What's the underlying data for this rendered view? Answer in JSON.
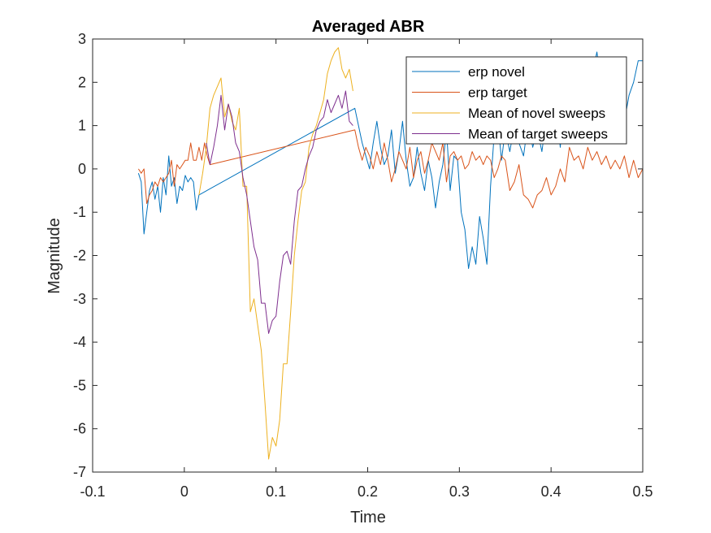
{
  "chart_data": {
    "type": "line",
    "title": "Averaged ABR",
    "xlabel": "Time",
    "ylabel": "Magnitude",
    "xlim": [
      -0.1,
      0.5
    ],
    "ylim": [
      -7,
      3
    ],
    "xticks": [
      -0.1,
      0,
      0.1,
      0.2,
      0.3,
      0.4,
      0.5
    ],
    "xtick_labels": [
      "-0.1",
      "0",
      "0.1",
      "0.2",
      "0.3",
      "0.4",
      "0.5"
    ],
    "yticks": [
      3,
      2,
      1,
      0,
      -1,
      -2,
      -3,
      -4,
      -5,
      -6,
      -7
    ],
    "ytick_labels": [
      "3",
      "2",
      "1",
      "0",
      "-1",
      "-2",
      "-3",
      "-4",
      "-5",
      "-6",
      "-7"
    ],
    "grid": false,
    "legend_position": "top-right",
    "series": [
      {
        "name": "erp novel",
        "color": "#0072BD",
        "x": [
          -0.05,
          -0.047,
          -0.044,
          -0.041,
          -0.038,
          -0.035,
          -0.032,
          -0.029,
          -0.026,
          -0.023,
          -0.02,
          -0.017,
          -0.014,
          -0.011,
          -0.008,
          -0.005,
          -0.002,
          0.001,
          0.004,
          0.007,
          0.01,
          0.013,
          0.016,
          0.186,
          0.19,
          0.194,
          0.198,
          0.202,
          0.206,
          0.21,
          0.214,
          0.218,
          0.222,
          0.226,
          0.23,
          0.234,
          0.238,
          0.242,
          0.246,
          0.25,
          0.254,
          0.258,
          0.262,
          0.266,
          0.27,
          0.274,
          0.278,
          0.282,
          0.286,
          0.29,
          0.294,
          0.298,
          0.302,
          0.306,
          0.31,
          0.314,
          0.318,
          0.322,
          0.326,
          0.33,
          0.334,
          0.338,
          0.342,
          0.346,
          0.35,
          0.355,
          0.36,
          0.365,
          0.37,
          0.375,
          0.38,
          0.385,
          0.39,
          0.395,
          0.4,
          0.405,
          0.41,
          0.415,
          0.42,
          0.425,
          0.43,
          0.435,
          0.44,
          0.445,
          0.45,
          0.455,
          0.46,
          0.465,
          0.47,
          0.475,
          0.48,
          0.485,
          0.49,
          0.495,
          0.5
        ],
        "y": [
          -0.1,
          -0.3,
          -1.5,
          -1.0,
          -0.5,
          -0.3,
          -0.7,
          -0.4,
          -1.0,
          -0.2,
          -0.6,
          0.3,
          -0.4,
          -0.2,
          -0.8,
          -0.4,
          -0.5,
          -0.15,
          -0.3,
          -0.2,
          -0.3,
          -0.95,
          -0.6,
          1.4,
          1.0,
          0.6,
          0.3,
          0.0,
          0.6,
          1.1,
          0.5,
          0.1,
          0.3,
          0.9,
          -0.1,
          0.4,
          1.1,
          0.2,
          -0.4,
          -0.2,
          0.5,
          -0.1,
          -0.5,
          0.2,
          -0.2,
          -0.9,
          -0.3,
          0.1,
          0.9,
          -0.5,
          0.3,
          0.2,
          -1.0,
          -1.4,
          -2.3,
          -1.8,
          -2.2,
          -1.1,
          -1.6,
          -2.2,
          -0.4,
          0.8,
          1.1,
          0.2,
          0.9,
          0.4,
          1.0,
          0.6,
          0.3,
          1.1,
          0.5,
          0.9,
          0.4,
          1.2,
          0.8,
          1.6,
          0.5,
          1.8,
          1.0,
          1.4,
          2.0,
          1.1,
          1.5,
          2.2,
          2.7,
          1.9,
          2.5,
          2.1,
          2.2,
          2.1,
          1.1,
          1.7,
          2.0,
          2.5,
          2.5
        ]
      },
      {
        "name": "erp target",
        "color": "#D95319",
        "x": [
          -0.05,
          -0.047,
          -0.044,
          -0.041,
          -0.038,
          -0.035,
          -0.032,
          -0.029,
          -0.026,
          -0.023,
          -0.02,
          -0.017,
          -0.014,
          -0.011,
          -0.008,
          -0.005,
          -0.002,
          0.001,
          0.004,
          0.007,
          0.01,
          0.013,
          0.016,
          0.019,
          0.022,
          0.025,
          0.028,
          0.186,
          0.19,
          0.194,
          0.198,
          0.202,
          0.206,
          0.21,
          0.214,
          0.218,
          0.222,
          0.226,
          0.23,
          0.234,
          0.238,
          0.242,
          0.246,
          0.25,
          0.254,
          0.258,
          0.262,
          0.266,
          0.27,
          0.274,
          0.278,
          0.282,
          0.286,
          0.29,
          0.294,
          0.298,
          0.302,
          0.306,
          0.31,
          0.314,
          0.318,
          0.322,
          0.326,
          0.33,
          0.334,
          0.338,
          0.342,
          0.346,
          0.35,
          0.355,
          0.36,
          0.365,
          0.37,
          0.375,
          0.38,
          0.385,
          0.39,
          0.395,
          0.4,
          0.405,
          0.41,
          0.415,
          0.42,
          0.425,
          0.43,
          0.435,
          0.44,
          0.445,
          0.45,
          0.455,
          0.46,
          0.465,
          0.47,
          0.475,
          0.48,
          0.485,
          0.49,
          0.495,
          0.5
        ],
        "y": [
          0.0,
          -0.1,
          0.0,
          -0.8,
          -0.6,
          -0.5,
          -0.3,
          -0.4,
          -0.2,
          -0.3,
          -0.2,
          -0.1,
          0.2,
          -0.4,
          0.1,
          0.0,
          0.1,
          0.2,
          0.2,
          0.6,
          0.2,
          0.2,
          0.5,
          0.2,
          0.6,
          0.3,
          0.1,
          0.9,
          0.5,
          0.2,
          0.5,
          0.3,
          0.0,
          0.4,
          0.1,
          0.6,
          0.2,
          -0.3,
          0.0,
          0.4,
          0.2,
          0.0,
          0.5,
          -0.2,
          0.2,
          0.4,
          -0.1,
          0.2,
          0.6,
          0.4,
          0.2,
          0.6,
          -0.3,
          0.3,
          0.4,
          0.2,
          0.3,
          0.0,
          0.1,
          0.4,
          0.2,
          0.3,
          0.1,
          0.3,
          0.2,
          -0.2,
          0.0,
          0.3,
          0.2,
          -0.5,
          -0.3,
          0.1,
          -0.6,
          -0.7,
          -0.9,
          -0.6,
          -0.5,
          -0.2,
          -0.6,
          -0.4,
          0.0,
          -0.3,
          0.5,
          0.2,
          0.3,
          0.0,
          0.5,
          0.2,
          0.4,
          0.1,
          0.3,
          0.0,
          0.2,
          0.0,
          0.3,
          -0.2,
          0.2,
          -0.2,
          0.0
        ]
      },
      {
        "name": "Mean of novel sweeps",
        "color": "#EDB120",
        "x": [
          0.016,
          0.02,
          0.024,
          0.028,
          0.032,
          0.036,
          0.04,
          0.044,
          0.048,
          0.052,
          0.056,
          0.06,
          0.064,
          0.068,
          0.072,
          0.076,
          0.08,
          0.084,
          0.088,
          0.092,
          0.096,
          0.1,
          0.104,
          0.108,
          0.112,
          0.116,
          0.12,
          0.124,
          0.128,
          0.132,
          0.136,
          0.14,
          0.144,
          0.148,
          0.152,
          0.156,
          0.16,
          0.164,
          0.168,
          0.172,
          0.176,
          0.18,
          0.184
        ],
        "y": [
          -0.6,
          -0.1,
          0.5,
          1.4,
          1.7,
          1.9,
          2.1,
          1.2,
          1.5,
          1.1,
          0.9,
          1.4,
          -0.4,
          -0.4,
          -3.3,
          -3.0,
          -3.6,
          -4.2,
          -5.4,
          -6.7,
          -6.2,
          -6.4,
          -5.8,
          -4.5,
          -4.5,
          -3.3,
          -2.0,
          -1.2,
          -0.5,
          -0.3,
          0.5,
          0.8,
          1.0,
          1.3,
          1.6,
          2.2,
          2.5,
          2.7,
          2.8,
          2.3,
          2.1,
          2.3,
          1.8
        ]
      },
      {
        "name": "Mean of target sweeps",
        "color": "#7E2F8E",
        "x": [
          0.024,
          0.028,
          0.032,
          0.036,
          0.04,
          0.044,
          0.048,
          0.052,
          0.056,
          0.06,
          0.064,
          0.068,
          0.072,
          0.076,
          0.08,
          0.084,
          0.088,
          0.092,
          0.096,
          0.1,
          0.104,
          0.108,
          0.112,
          0.116,
          0.12,
          0.124,
          0.128,
          0.132,
          0.136,
          0.14,
          0.144,
          0.148,
          0.152,
          0.156,
          0.16,
          0.164,
          0.168,
          0.172,
          0.176,
          0.18,
          0.184
        ],
        "y": [
          0.6,
          0.1,
          0.5,
          1.0,
          1.7,
          0.9,
          1.5,
          1.2,
          0.6,
          0.4,
          -0.2,
          -0.6,
          -1.2,
          -1.8,
          -2.1,
          -3.1,
          -3.1,
          -3.8,
          -3.5,
          -3.4,
          -2.6,
          -2.0,
          -1.9,
          -2.2,
          -1.2,
          -0.5,
          -0.4,
          0.0,
          0.3,
          0.5,
          0.9,
          1.1,
          1.2,
          1.6,
          1.3,
          1.5,
          1.7,
          1.4,
          1.8,
          1.1,
          1.0
        ]
      }
    ]
  }
}
